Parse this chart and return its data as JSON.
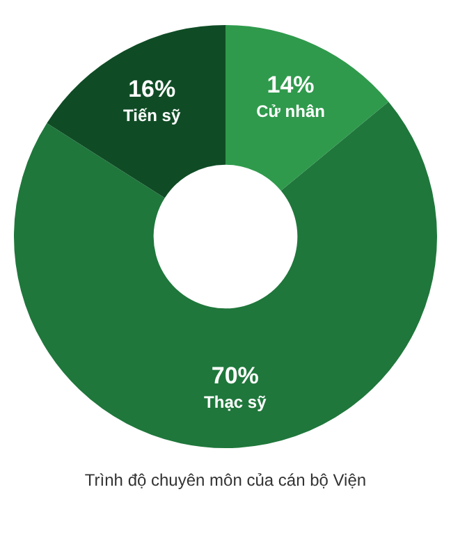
{
  "chart_data": {
    "type": "donut",
    "categories": [
      "Cử nhân",
      "Thạc sỹ",
      "Tiến sỹ"
    ],
    "values": [
      14,
      70,
      16
    ],
    "colors": [
      "#2f9a4c",
      "#1f773b",
      "#0f4c25"
    ],
    "value_labels": [
      "14%",
      "70%",
      "16%"
    ],
    "legend": false,
    "annotations": [
      "Trình độ chuyên môn của cán bộ Viện"
    ]
  }
}
